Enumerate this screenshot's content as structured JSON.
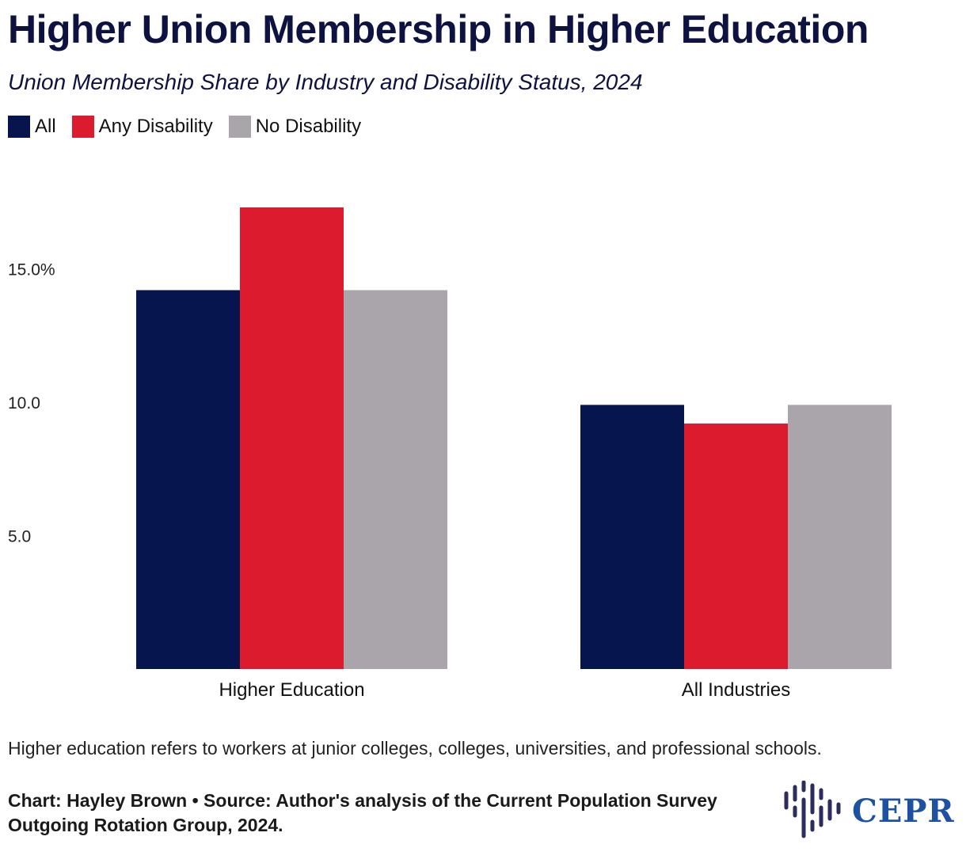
{
  "title": "Higher Union Membership in Higher Education",
  "subtitle": "Union Membership Share by Industry and Disability Status, 2024",
  "legend": [
    {
      "label": "All",
      "color": "#06154d"
    },
    {
      "label": "Any Disability",
      "color": "#dc1c2e"
    },
    {
      "label": "No Disability",
      "color": "#aaa5aa"
    }
  ],
  "chart_data": {
    "type": "bar",
    "title": "Higher Union Membership in Higher Education",
    "subtitle": "Union Membership Share by Industry and Disability Status, 2024",
    "categories": [
      "Higher Education",
      "All Industries"
    ],
    "series": [
      {
        "name": "All",
        "values": [
          14.2,
          9.9
        ],
        "color": "#06154d"
      },
      {
        "name": "Any Disability",
        "values": [
          17.3,
          9.2
        ],
        "color": "#dc1c2e"
      },
      {
        "name": "No Disability",
        "values": [
          14.2,
          9.9
        ],
        "color": "#aaa5aa"
      }
    ],
    "yticks": [
      {
        "value": 5,
        "label": "5.0"
      },
      {
        "value": 10,
        "label": "10.0"
      },
      {
        "value": 15,
        "label": "15.0%"
      }
    ],
    "ylim": [
      0,
      17.3
    ],
    "xlabel": "",
    "ylabel": "",
    "legend_position": "top-left",
    "grid": false
  },
  "note": "Higher education refers to workers at junior colleges, colleges, universities, and professional schools.",
  "source": "Chart: Hayley Brown • Source: Author's analysis of the Current Population Survey Outgoing Rotation Group, 2024.",
  "logo": {
    "text": "CEPR",
    "color": "#1d52a3"
  }
}
